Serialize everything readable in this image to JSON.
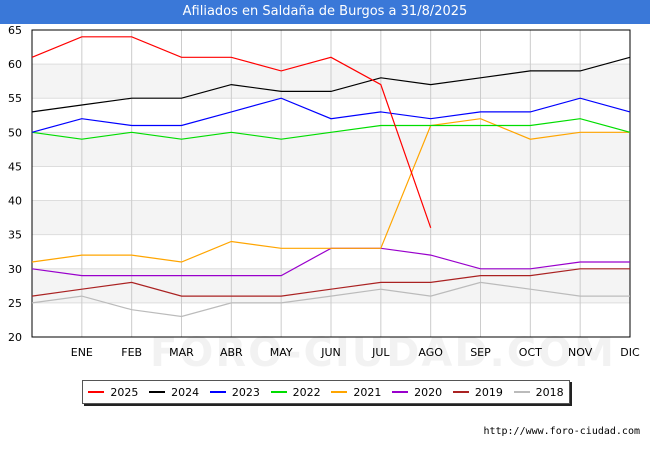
{
  "header": {
    "title": "Afiliados en Saldaña de Burgos a 31/8/2025"
  },
  "watermark": "FORO-CIUDAD.COM",
  "footer": {
    "source": "http://www.foro-ciudad.com"
  },
  "chart_data": {
    "type": "line",
    "title": "Afiliados en Saldaña de Burgos a 31/8/2025",
    "xlabel": "",
    "ylabel": "",
    "ylim": [
      20,
      65
    ],
    "yticks": [
      20,
      25,
      30,
      35,
      40,
      45,
      50,
      55,
      60,
      65
    ],
    "categories": [
      "",
      "ENE",
      "FEB",
      "MAR",
      "ABR",
      "MAY",
      "JUN",
      "JUL",
      "AGO",
      "SEP",
      "OCT",
      "NOV",
      "DIC"
    ],
    "grid": true,
    "legend_position": "bottom",
    "series": [
      {
        "name": "2025",
        "color": "#ff0000",
        "values": [
          61,
          64,
          64,
          61,
          61,
          59,
          61,
          57,
          36,
          null,
          null,
          null,
          null
        ]
      },
      {
        "name": "2024",
        "color": "#000000",
        "values": [
          53,
          54,
          55,
          55,
          57,
          56,
          56,
          58,
          57,
          58,
          59,
          59,
          61
        ]
      },
      {
        "name": "2023",
        "color": "#0000ff",
        "values": [
          50,
          52,
          51,
          51,
          53,
          55,
          52,
          53,
          52,
          53,
          53,
          55,
          53
        ]
      },
      {
        "name": "2022",
        "color": "#00dd00",
        "values": [
          50,
          49,
          50,
          49,
          50,
          49,
          50,
          51,
          51,
          51,
          51,
          52,
          50
        ]
      },
      {
        "name": "2021",
        "color": "#ffa500",
        "values": [
          31,
          32,
          32,
          31,
          34,
          33,
          33,
          33,
          51,
          52,
          49,
          50,
          50
        ]
      },
      {
        "name": "2020",
        "color": "#9900cc",
        "values": [
          30,
          29,
          29,
          29,
          29,
          29,
          33,
          33,
          32,
          30,
          30,
          31,
          31
        ]
      },
      {
        "name": "2019",
        "color": "#aa2222",
        "values": [
          26,
          27,
          28,
          26,
          26,
          26,
          27,
          28,
          28,
          29,
          29,
          30,
          30
        ]
      },
      {
        "name": "2018",
        "color": "#bbbbbb",
        "values": [
          25,
          26,
          24,
          23,
          25,
          25,
          26,
          27,
          26,
          28,
          27,
          26,
          26
        ]
      }
    ]
  }
}
